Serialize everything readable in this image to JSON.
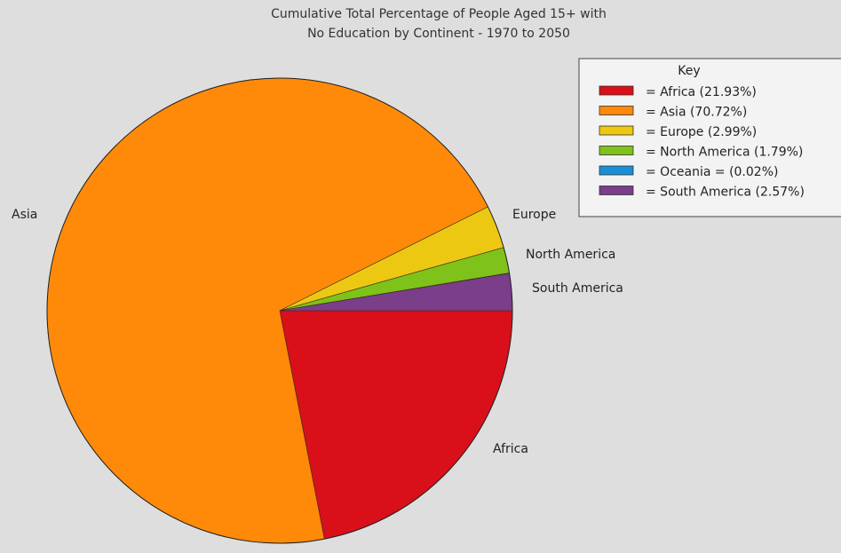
{
  "chart_data": {
    "type": "pie",
    "title_lines": [
      "Cumulative Total Percentage of People Aged 15+ with",
      "No Education by Continent - 1970 to 2050"
    ],
    "slices": [
      {
        "name": "Africa",
        "value": 21.93,
        "color": "#d90f1a",
        "label": "Africa",
        "legend": "=   Africa (21.93%)"
      },
      {
        "name": "Asia",
        "value": 70.72,
        "color": "#ff8a0a",
        "label": "Asia",
        "legend": "=   Asia (70.72%)"
      },
      {
        "name": "Europe",
        "value": 2.99,
        "color": "#ecc813",
        "label": "Europe",
        "legend": "=   Europe (2.99%)"
      },
      {
        "name": "North America",
        "value": 1.79,
        "color": "#7ec21a",
        "label": "North America",
        "legend": "=   North America (1.79%)"
      },
      {
        "name": "Oceania",
        "value": 0.02,
        "color": "#1a8fd6",
        "label": "",
        "legend": "=   Oceania = (0.02%)"
      },
      {
        "name": "South America",
        "value": 2.57,
        "color": "#7a3e8a",
        "label": "South America",
        "legend": "=   South America (2.57%)"
      }
    ],
    "legend_title": "Key",
    "legend_placement": "top-right"
  }
}
